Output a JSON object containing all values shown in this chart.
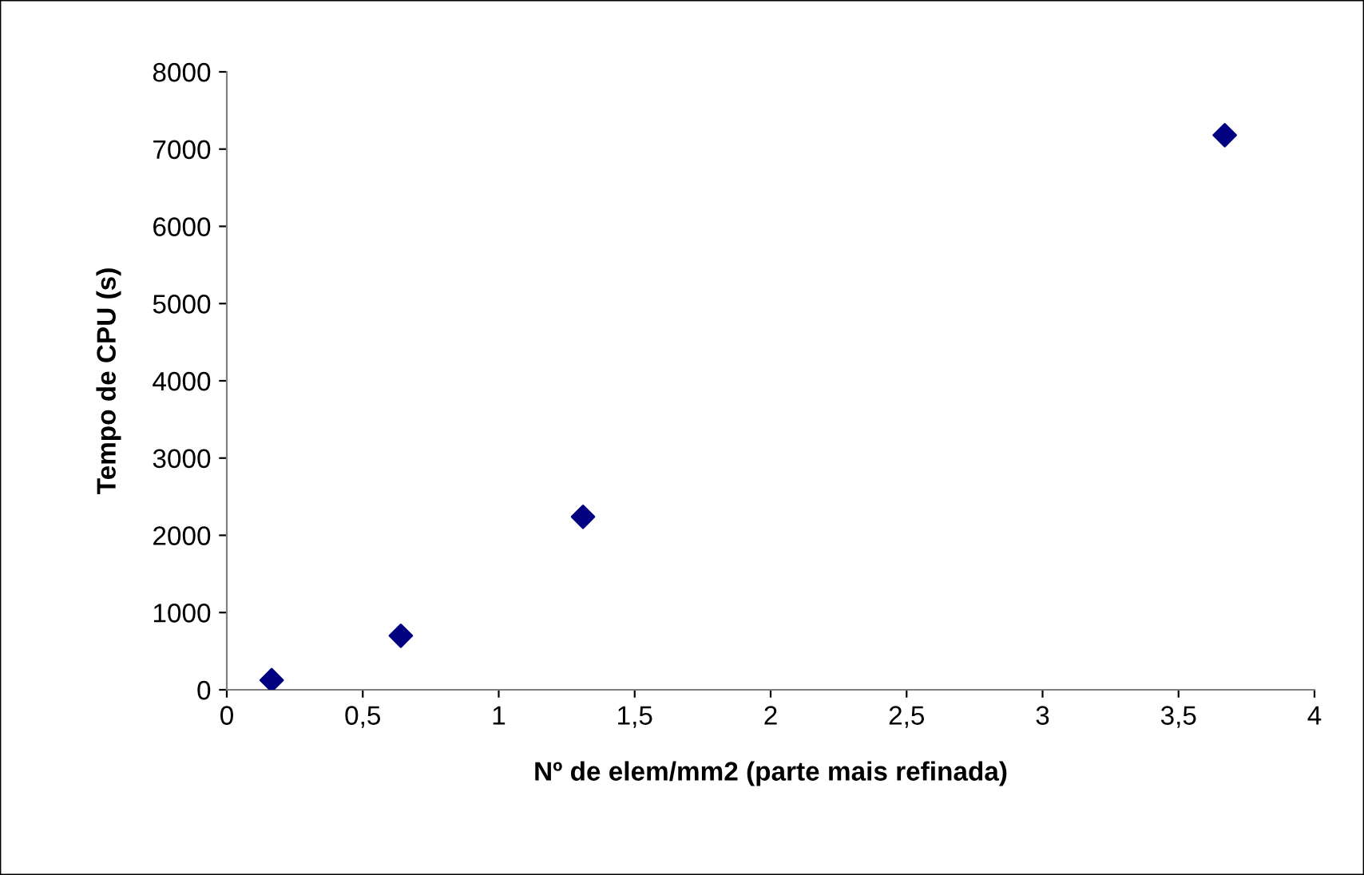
{
  "chart_data": {
    "type": "scatter",
    "xlabel": "Nº de elem/mm2 (parte mais refinada)",
    "ylabel": "Tempo de CPU (s)",
    "x": [
      0.165,
      0.64,
      1.31,
      3.67
    ],
    "series": [
      {
        "color": "#000080",
        "values": [
          125,
          700,
          2240,
          7180
        ]
      }
    ],
    "marker": "diamond",
    "grid": false,
    "legend": false,
    "xlim": [
      0,
      4
    ],
    "xticks": [
      0,
      {
        "value": 0.5,
        "label": "0,5"
      },
      1,
      {
        "value": 1.5,
        "label": "1,5"
      },
      2,
      {
        "value": 2.5,
        "label": "2,5"
      },
      3,
      {
        "value": 3.5,
        "label": "3,5"
      },
      4
    ],
    "ylim": [
      0,
      8000
    ],
    "yticks": [
      0,
      1000,
      2000,
      3000,
      4000,
      5000,
      6000,
      7000,
      8000
    ]
  }
}
